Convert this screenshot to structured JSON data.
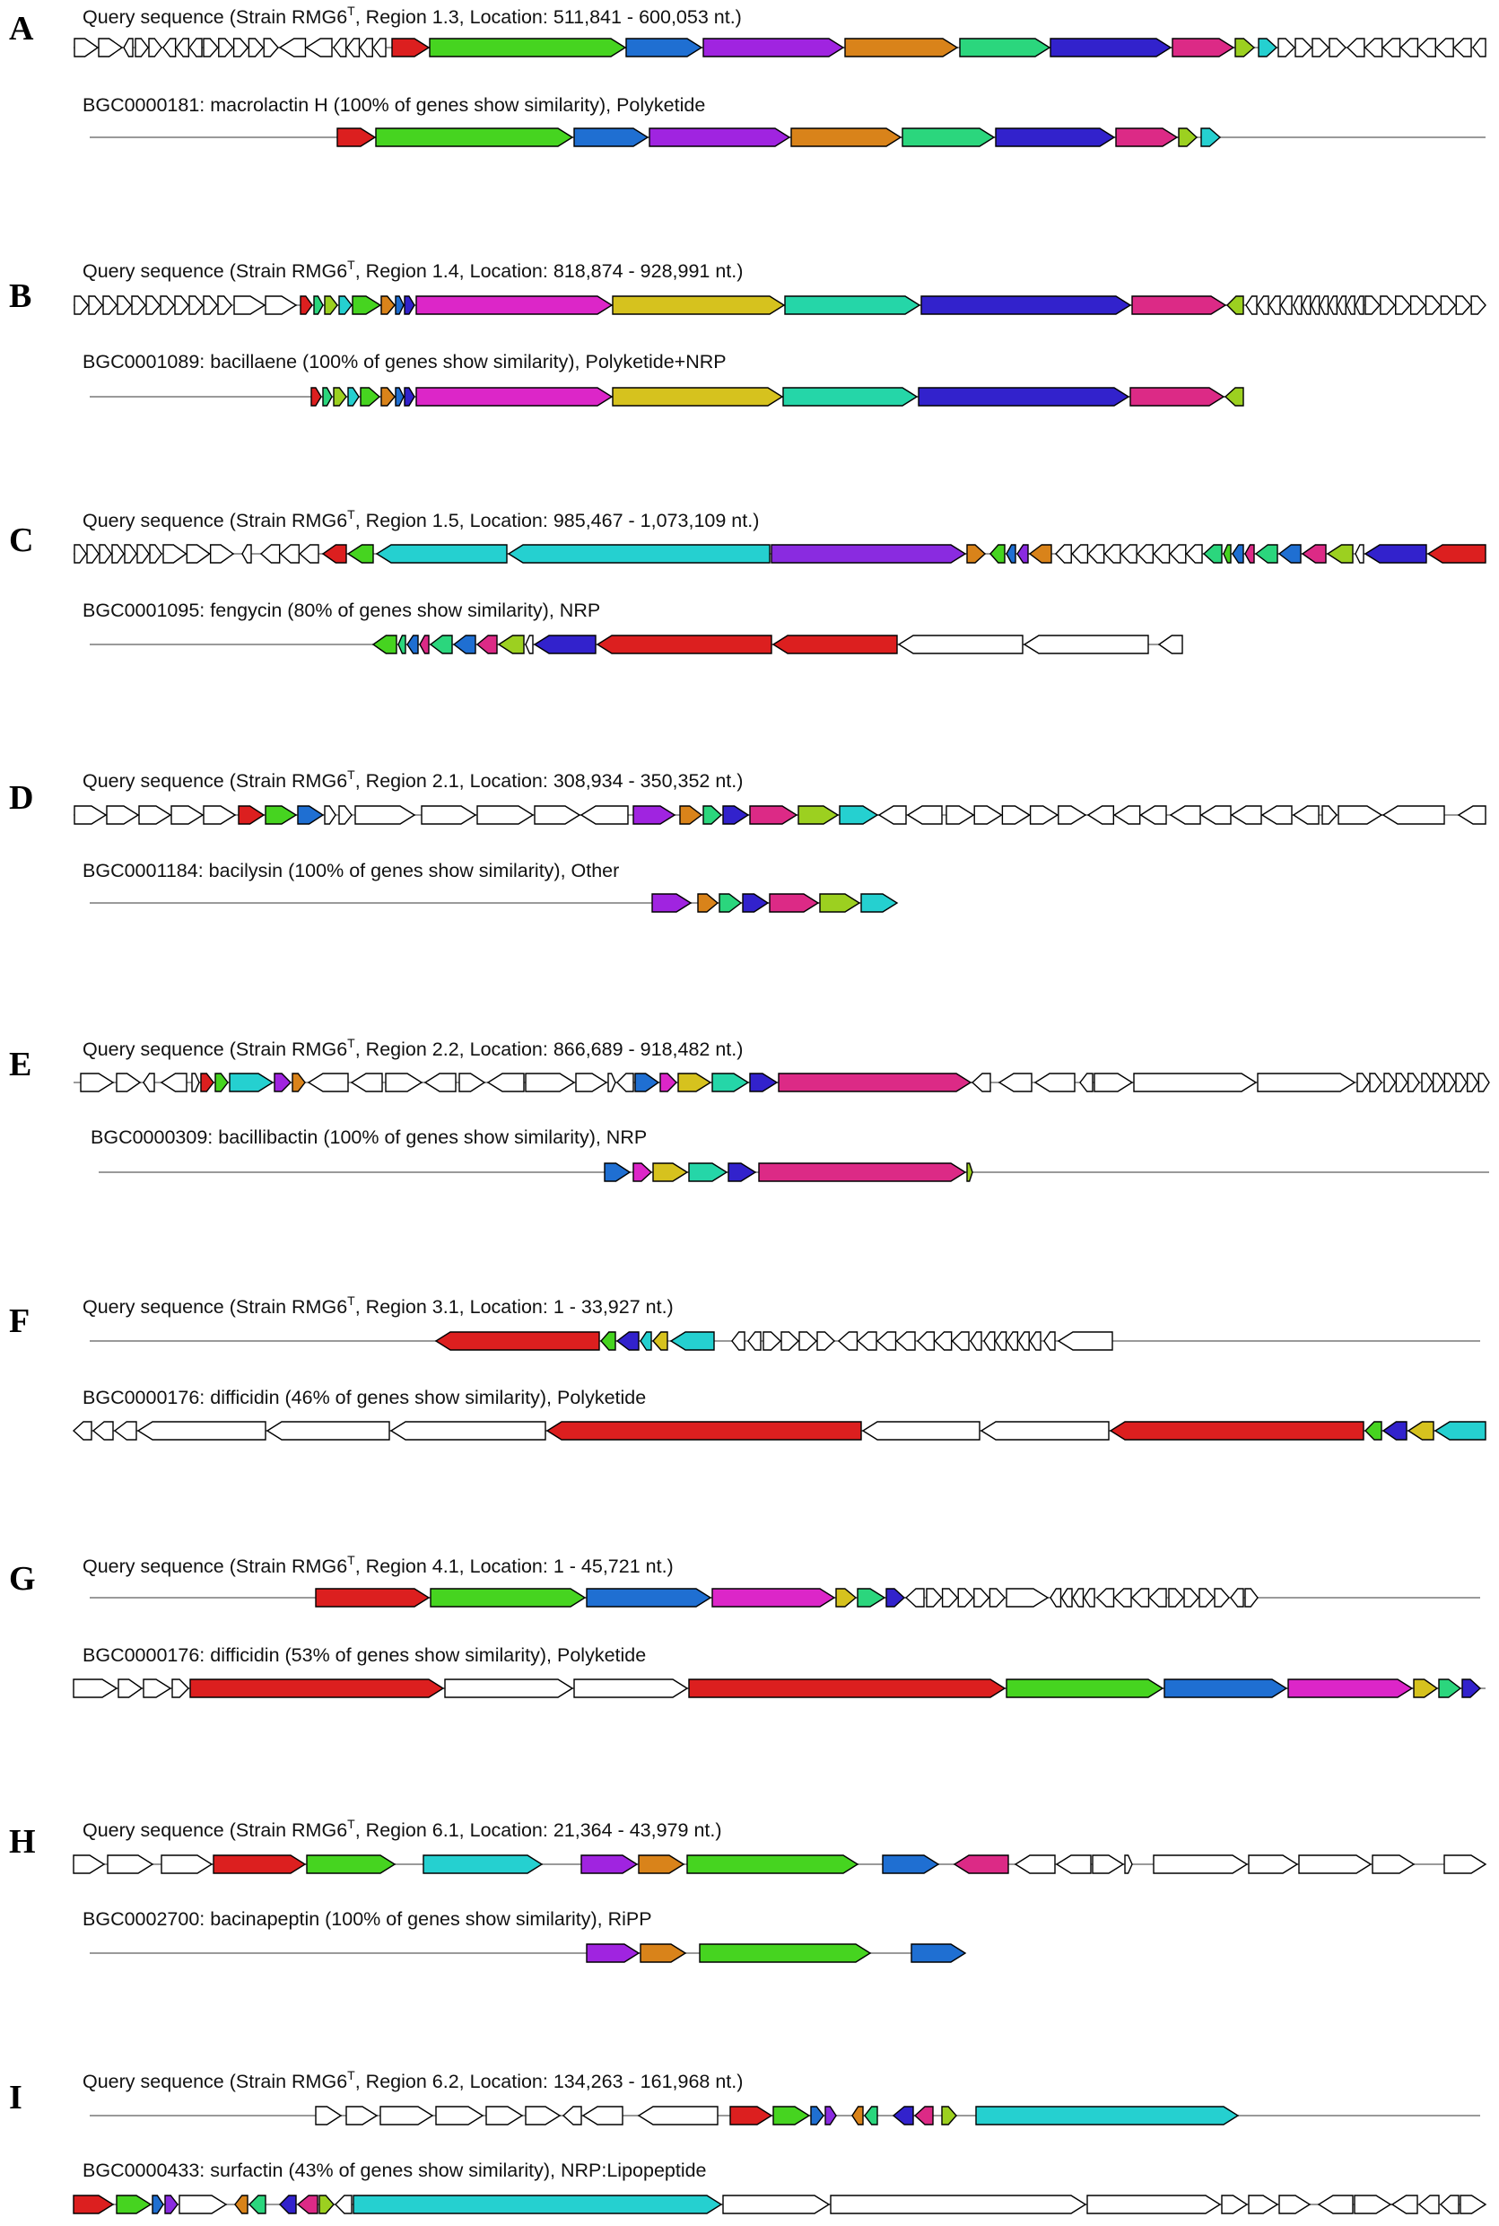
{
  "colors": {
    "red": "#dc1f1f",
    "green": "#46d420",
    "blue": "#1f6fd2",
    "purple": "#a024e0",
    "orange": "#d9831a",
    "mint": "#2bd67d",
    "indigo": "#3222cc",
    "magenta": "#dc2a86",
    "pink": "#dc26c8",
    "lime": "#9cd020",
    "cyan": "#25d0d0",
    "yellow": "#d6c21e",
    "teal": "#25d6a8",
    "violet": "#8a2be0",
    "white": "#ffffff"
  },
  "panels": [
    {
      "letter": "A",
      "query": {
        "label": "Query sequence (Strain RMG6",
        "sup": "T",
        "label_rest": ", Region 1.3, Location: 511,841 - 600,053 nt.)"
      },
      "reference": {
        "label": "BGC0000181: macrolactin H (100% of genes show similarity), Polyketide"
      }
    },
    {
      "letter": "B",
      "query": {
        "label": "Query sequence (Strain RMG6",
        "sup": "T",
        "label_rest": ", Region 1.4, Location: 818,874 - 928,991 nt.)"
      },
      "reference": {
        "label": "BGC0001089: bacillaene (100% of genes show similarity), Polyketide+NRP"
      }
    },
    {
      "letter": "C",
      "query": {
        "label": "Query sequence (Strain RMG6",
        "sup": "T",
        "label_rest": ", Region 1.5, Location: 985,467 - 1,073,109 nt.)"
      },
      "reference": {
        "label": "BGC0001095: fengycin (80% of genes show similarity), NRP"
      }
    },
    {
      "letter": "D",
      "query": {
        "label": "Query sequence (Strain RMG6",
        "sup": "T",
        "label_rest": ", Region 2.1, Location: 308,934 - 350,352 nt.)"
      },
      "reference": {
        "label": "BGC0001184: bacilysin (100% of genes show similarity), Other"
      }
    },
    {
      "letter": "E",
      "query": {
        "label": "Query sequence (Strain RMG6",
        "sup": "T",
        "label_rest": ", Region 2.2, Location: 866,689 - 918,482 nt.)"
      },
      "reference": {
        "label": "BGC0000309: bacillibactin (100% of genes show similarity), NRP"
      }
    },
    {
      "letter": "F",
      "query": {
        "label": "Query sequence (Strain RMG6",
        "sup": "T",
        "label_rest": ", Region 3.1, Location: 1 - 33,927 nt.)"
      },
      "reference": {
        "label": "BGC0000176: difficidin (46% of genes show similarity), Polyketide"
      }
    },
    {
      "letter": "G",
      "query": {
        "label": "Query sequence (Strain RMG6",
        "sup": "T",
        "label_rest": ", Region 4.1, Location: 1 - 45,721 nt.)"
      },
      "reference": {
        "label": "BGC0000176: difficidin (53% of genes show similarity), Polyketide"
      }
    },
    {
      "letter": "H",
      "query": {
        "label": "Query sequence (Strain RMG6",
        "sup": "T",
        "label_rest": ", Region 6.1, Location: 21,364 - 43,979 nt.)"
      },
      "reference": {
        "label": "BGC0002700: bacinapeptin (100% of genes show similarity), RiPP"
      }
    },
    {
      "letter": "I",
      "query": {
        "label": "Query sequence (Strain RMG6",
        "sup": "T",
        "label_rest": ", Region 6.2, Location: 134,263 - 161,968 nt.)"
      },
      "reference": {
        "label": "BGC0000433: surfactin (43% of genes show similarity), NRP:Lipopeptide"
      }
    }
  ]
}
